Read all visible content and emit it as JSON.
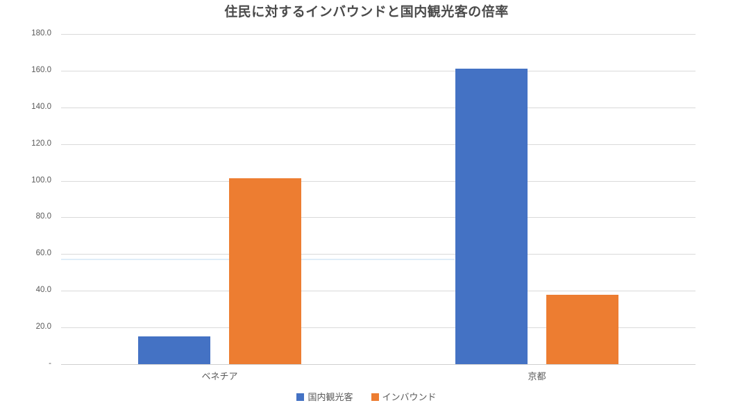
{
  "chart_data": {
    "type": "bar",
    "title": "住民に対するインバウンドと国内観光客の倍率",
    "categories": [
      "ベネチア",
      "京都"
    ],
    "series": [
      {
        "name": "国内観光客",
        "color": "#4472C4",
        "values": [
          15.0,
          161.0
        ]
      },
      {
        "name": "インバウンド",
        "color": "#ED7D31",
        "values": [
          101.5,
          38.0
        ]
      }
    ],
    "xlabel": "",
    "ylabel": "",
    "ylim": [
      0,
      180
    ],
    "ytick_step": 20,
    "ytick_labels": [
      "-",
      "20.0",
      "40.0",
      "60.0",
      "80.0",
      "100.0",
      "120.0",
      "140.0",
      "160.0",
      "180.0"
    ],
    "grid": true,
    "legend_position": "bottom",
    "annotations": {
      "artifact_line": {
        "y_value": 57.5,
        "x_start_frac": 0.0,
        "x_end_frac": 0.62,
        "color": "#d9eaf7"
      }
    }
  },
  "colors": {
    "gridline": "#d9d9d9",
    "axis_line": "#cfcfcf",
    "tick_text": "#595959",
    "title_text": "#4a4a4a",
    "background": "#ffffff"
  }
}
